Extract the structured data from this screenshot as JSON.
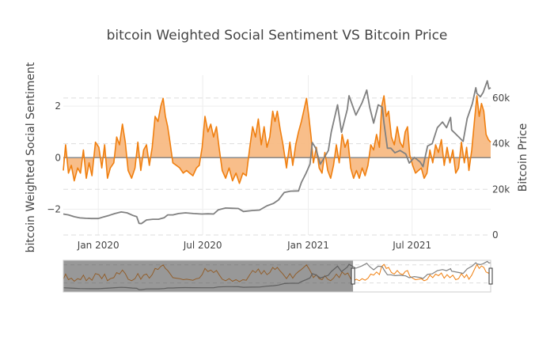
{
  "chart_data": {
    "type": "line",
    "title": "bitcoin Weighted Social Sentiment VS Bitcoin Price",
    "ylabel_left": "bitcoin Weighted Social Sentiment",
    "ylabel_right": "Bitcoin Price",
    "x_range": [
      "2019-11-01",
      "2021-11-15"
    ],
    "x_ticks": [
      {
        "date": "2020-01-01",
        "label": "Jan 2020"
      },
      {
        "date": "2020-07-01",
        "label": "Jul 2020"
      },
      {
        "date": "2021-01-01",
        "label": "Jan 2021"
      },
      {
        "date": "2021-07-01",
        "label": "Jul 2021"
      }
    ],
    "y_left": {
      "range": [
        -3.0,
        3.2
      ],
      "ticks": [
        2,
        0,
        -2
      ],
      "tick_labels": [
        "2",
        "0",
        "−2"
      ]
    },
    "y_right": {
      "range": [
        0,
        70000
      ],
      "ticks": [
        0,
        20000,
        40000,
        60000
      ],
      "tick_labels": [
        "0",
        "20k",
        "40k",
        "60k"
      ]
    },
    "rangeslider": {
      "window_start": "2021-03-20",
      "window_end": "2021-11-15"
    },
    "series": [
      {
        "name": "Weighted Social Sentiment",
        "axis": "left",
        "color": "#f07f0f",
        "fill": "#f7b77d",
        "points": [
          [
            "2019-11-01",
            -0.5
          ],
          [
            "2019-11-05",
            0.5
          ],
          [
            "2019-11-10",
            -0.6
          ],
          [
            "2019-11-15",
            -0.3
          ],
          [
            "2019-11-20",
            -0.9
          ],
          [
            "2019-11-26",
            -0.4
          ],
          [
            "2019-12-01",
            -0.6
          ],
          [
            "2019-12-06",
            0.3
          ],
          [
            "2019-12-11",
            -0.8
          ],
          [
            "2019-12-16",
            -0.2
          ],
          [
            "2019-12-21",
            -0.7
          ],
          [
            "2019-12-27",
            0.6
          ],
          [
            "2020-01-02",
            0.4
          ],
          [
            "2020-01-07",
            -0.4
          ],
          [
            "2020-01-12",
            0.5
          ],
          [
            "2020-01-17",
            -0.8
          ],
          [
            "2020-01-22",
            -0.4
          ],
          [
            "2020-01-28",
            -0.2
          ],
          [
            "2020-02-02",
            0.8
          ],
          [
            "2020-02-07",
            0.5
          ],
          [
            "2020-02-12",
            1.3
          ],
          [
            "2020-02-17",
            0.6
          ],
          [
            "2020-02-22",
            -0.5
          ],
          [
            "2020-02-28",
            -0.8
          ],
          [
            "2020-03-05",
            -0.4
          ],
          [
            "2020-03-10",
            0.6
          ],
          [
            "2020-03-15",
            -0.5
          ],
          [
            "2020-03-20",
            0.3
          ],
          [
            "2020-03-25",
            0.5
          ],
          [
            "2020-03-30",
            -0.3
          ],
          [
            "2020-04-04",
            0.4
          ],
          [
            "2020-04-09",
            1.6
          ],
          [
            "2020-04-14",
            1.4
          ],
          [
            "2020-04-19",
            2.0
          ],
          [
            "2020-04-23",
            2.3
          ],
          [
            "2020-04-27",
            1.6
          ],
          [
            "2020-05-01",
            1.2
          ],
          [
            "2020-05-05",
            0.6
          ],
          [
            "2020-05-10",
            -0.2
          ],
          [
            "2020-05-16",
            -0.3
          ],
          [
            "2020-05-22",
            -0.4
          ],
          [
            "2020-05-28",
            -0.6
          ],
          [
            "2020-06-03",
            -0.5
          ],
          [
            "2020-06-08",
            -0.6
          ],
          [
            "2020-06-14",
            -0.7
          ],
          [
            "2020-06-20",
            -0.4
          ],
          [
            "2020-06-25",
            -0.3
          ],
          [
            "2020-06-30",
            0.4
          ],
          [
            "2020-07-05",
            1.6
          ],
          [
            "2020-07-10",
            1.0
          ],
          [
            "2020-07-15",
            1.3
          ],
          [
            "2020-07-20",
            0.8
          ],
          [
            "2020-07-25",
            1.2
          ],
          [
            "2020-07-30",
            0.3
          ],
          [
            "2020-08-04",
            -0.5
          ],
          [
            "2020-08-10",
            -0.8
          ],
          [
            "2020-08-16",
            -0.4
          ],
          [
            "2020-08-22",
            -0.9
          ],
          [
            "2020-08-28",
            -0.6
          ],
          [
            "2020-09-03",
            -1.0
          ],
          [
            "2020-09-09",
            -0.6
          ],
          [
            "2020-09-15",
            -0.7
          ],
          [
            "2020-09-21",
            0.4
          ],
          [
            "2020-09-26",
            1.2
          ],
          [
            "2020-10-01",
            0.8
          ],
          [
            "2020-10-06",
            1.5
          ],
          [
            "2020-10-11",
            0.5
          ],
          [
            "2020-10-16",
            1.2
          ],
          [
            "2020-10-21",
            0.4
          ],
          [
            "2020-10-26",
            0.8
          ],
          [
            "2020-10-31",
            1.8
          ],
          [
            "2020-11-04",
            1.4
          ],
          [
            "2020-11-08",
            1.8
          ],
          [
            "2020-11-13",
            1.1
          ],
          [
            "2020-11-18",
            0.5
          ],
          [
            "2020-11-24",
            -0.4
          ],
          [
            "2020-11-30",
            0.6
          ],
          [
            "2020-12-05",
            -0.3
          ],
          [
            "2020-12-10",
            0.5
          ],
          [
            "2020-12-15",
            1.0
          ],
          [
            "2020-12-20",
            1.4
          ],
          [
            "2020-12-25",
            1.9
          ],
          [
            "2020-12-29",
            2.3
          ],
          [
            "2021-01-02",
            1.6
          ],
          [
            "2021-01-06",
            0.8
          ],
          [
            "2021-01-10",
            -0.2
          ],
          [
            "2021-01-15",
            0.4
          ],
          [
            "2021-01-20",
            -0.4
          ],
          [
            "2021-01-25",
            -0.6
          ],
          [
            "2021-01-30",
            0.2
          ],
          [
            "2021-02-04",
            -0.5
          ],
          [
            "2021-02-09",
            -0.8
          ],
          [
            "2021-02-14",
            -0.3
          ],
          [
            "2021-02-19",
            0.5
          ],
          [
            "2021-02-24",
            -0.2
          ],
          [
            "2021-03-01",
            0.9
          ],
          [
            "2021-03-06",
            0.4
          ],
          [
            "2021-03-11",
            0.7
          ],
          [
            "2021-03-16",
            -0.4
          ],
          [
            "2021-03-21",
            -0.8
          ],
          [
            "2021-03-26",
            -0.5
          ],
          [
            "2021-03-31",
            -0.8
          ],
          [
            "2021-04-05",
            -0.4
          ],
          [
            "2021-04-10",
            -0.7
          ],
          [
            "2021-04-15",
            -0.3
          ],
          [
            "2021-04-20",
            0.5
          ],
          [
            "2021-04-25",
            0.3
          ],
          [
            "2021-04-30",
            0.9
          ],
          [
            "2021-05-05",
            0.4
          ],
          [
            "2021-05-09",
            2.0
          ],
          [
            "2021-05-13",
            2.4
          ],
          [
            "2021-05-17",
            1.6
          ],
          [
            "2021-05-21",
            1.8
          ],
          [
            "2021-05-26",
            0.8
          ],
          [
            "2021-05-31",
            0.5
          ],
          [
            "2021-06-05",
            1.2
          ],
          [
            "2021-06-10",
            0.6
          ],
          [
            "2021-06-15",
            0.4
          ],
          [
            "2021-06-19",
            1.0
          ],
          [
            "2021-06-23",
            1.2
          ],
          [
            "2021-06-27",
            0.1
          ],
          [
            "2021-07-02",
            -0.3
          ],
          [
            "2021-07-07",
            -0.6
          ],
          [
            "2021-07-12",
            -0.5
          ],
          [
            "2021-07-17",
            -0.4
          ],
          [
            "2021-07-22",
            -0.8
          ],
          [
            "2021-07-27",
            -0.6
          ],
          [
            "2021-08-01",
            0.3
          ],
          [
            "2021-08-06",
            -0.2
          ],
          [
            "2021-08-11",
            0.5
          ],
          [
            "2021-08-16",
            0.2
          ],
          [
            "2021-08-21",
            0.7
          ],
          [
            "2021-08-26",
            -0.3
          ],
          [
            "2021-08-31",
            0.4
          ],
          [
            "2021-09-05",
            -0.2
          ],
          [
            "2021-09-10",
            0.3
          ],
          [
            "2021-09-15",
            -0.6
          ],
          [
            "2021-09-20",
            -0.4
          ],
          [
            "2021-09-25",
            0.6
          ],
          [
            "2021-09-30",
            -0.2
          ],
          [
            "2021-10-04",
            0.4
          ],
          [
            "2021-10-08",
            -0.5
          ],
          [
            "2021-10-13",
            0.3
          ],
          [
            "2021-10-18",
            1.5
          ],
          [
            "2021-10-22",
            2.4
          ],
          [
            "2021-10-26",
            1.6
          ],
          [
            "2021-10-30",
            2.1
          ],
          [
            "2021-11-03",
            1.8
          ],
          [
            "2021-11-07",
            0.9
          ],
          [
            "2021-11-11",
            0.7
          ],
          [
            "2021-11-15",
            0.6
          ]
        ]
      },
      {
        "name": "Bitcoin Price",
        "axis": "right",
        "color": "#808080",
        "points": [
          [
            "2019-11-01",
            9200
          ],
          [
            "2019-11-10",
            8800
          ],
          [
            "2019-11-20",
            8000
          ],
          [
            "2019-11-30",
            7500
          ],
          [
            "2019-12-10",
            7300
          ],
          [
            "2019-12-20",
            7200
          ],
          [
            "2020-01-01",
            7200
          ],
          [
            "2020-01-10",
            7900
          ],
          [
            "2020-01-20",
            8600
          ],
          [
            "2020-01-30",
            9400
          ],
          [
            "2020-02-10",
            10100
          ],
          [
            "2020-02-20",
            9700
          ],
          [
            "2020-03-01",
            8600
          ],
          [
            "2020-03-08",
            8000
          ],
          [
            "2020-03-12",
            5100
          ],
          [
            "2020-03-16",
            5000
          ],
          [
            "2020-03-25",
            6600
          ],
          [
            "2020-04-05",
            6900
          ],
          [
            "2020-04-15",
            6900
          ],
          [
            "2020-04-25",
            7600
          ],
          [
            "2020-05-01",
            8800
          ],
          [
            "2020-05-10",
            8800
          ],
          [
            "2020-05-20",
            9400
          ],
          [
            "2020-06-01",
            9700
          ],
          [
            "2020-06-15",
            9400
          ],
          [
            "2020-06-30",
            9200
          ],
          [
            "2020-07-10",
            9300
          ],
          [
            "2020-07-20",
            9200
          ],
          [
            "2020-07-28",
            11000
          ],
          [
            "2020-08-10",
            11800
          ],
          [
            "2020-08-20",
            11700
          ],
          [
            "2020-09-01",
            11600
          ],
          [
            "2020-09-10",
            10300
          ],
          [
            "2020-09-25",
            10700
          ],
          [
            "2020-10-08",
            10900
          ],
          [
            "2020-10-21",
            12800
          ],
          [
            "2020-11-01",
            13800
          ],
          [
            "2020-11-10",
            15300
          ],
          [
            "2020-11-20",
            18600
          ],
          [
            "2020-12-01",
            19200
          ],
          [
            "2020-12-15",
            19300
          ],
          [
            "2020-12-20",
            23000
          ],
          [
            "2020-12-28",
            27000
          ],
          [
            "2021-01-04",
            31000
          ],
          [
            "2021-01-08",
            40500
          ],
          [
            "2021-01-14",
            38000
          ],
          [
            "2021-01-22",
            31000
          ],
          [
            "2021-01-28",
            33500
          ],
          [
            "2021-02-05",
            37000
          ],
          [
            "2021-02-10",
            45000
          ],
          [
            "2021-02-21",
            57000
          ],
          [
            "2021-02-28",
            45000
          ],
          [
            "2021-03-10",
            55000
          ],
          [
            "2021-03-13",
            61000
          ],
          [
            "2021-03-25",
            52500
          ],
          [
            "2021-04-05",
            58000
          ],
          [
            "2021-04-13",
            63500
          ],
          [
            "2021-04-18",
            56000
          ],
          [
            "2021-04-25",
            49000
          ],
          [
            "2021-05-03",
            57000
          ],
          [
            "2021-05-10",
            56000
          ],
          [
            "2021-05-13",
            49000
          ],
          [
            "2021-05-19",
            38000
          ],
          [
            "2021-05-25",
            38000
          ],
          [
            "2021-06-01",
            36000
          ],
          [
            "2021-06-10",
            37000
          ],
          [
            "2021-06-20",
            35500
          ],
          [
            "2021-06-26",
            31500
          ],
          [
            "2021-07-05",
            34000
          ],
          [
            "2021-07-15",
            32000
          ],
          [
            "2021-07-20",
            29900
          ],
          [
            "2021-07-28",
            39000
          ],
          [
            "2021-08-05",
            40000
          ],
          [
            "2021-08-14",
            47000
          ],
          [
            "2021-08-23",
            49500
          ],
          [
            "2021-08-30",
            47000
          ],
          [
            "2021-09-06",
            51500
          ],
          [
            "2021-09-08",
            46000
          ],
          [
            "2021-09-20",
            43000
          ],
          [
            "2021-09-28",
            41000
          ],
          [
            "2021-10-05",
            51000
          ],
          [
            "2021-10-14",
            57500
          ],
          [
            "2021-10-20",
            64500
          ],
          [
            "2021-10-22",
            62000
          ],
          [
            "2021-10-28",
            60500
          ],
          [
            "2021-11-02",
            62500
          ],
          [
            "2021-11-09",
            67500
          ],
          [
            "2021-11-12",
            64000
          ],
          [
            "2021-11-15",
            64500
          ]
        ]
      }
    ]
  }
}
